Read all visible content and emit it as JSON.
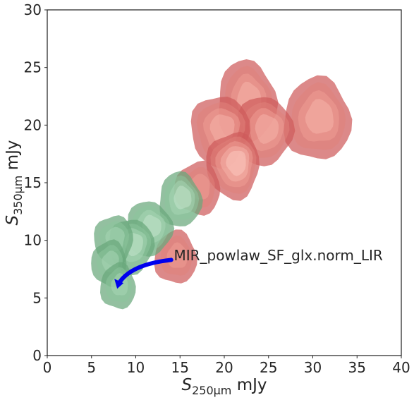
{
  "chart_data": {
    "type": "contour",
    "xlabel": {
      "symbol": "S",
      "subscript": "250µm",
      "unit": " mJy"
    },
    "ylabel": {
      "symbol": "S",
      "subscript": "350µm",
      "unit": " mJy"
    },
    "xlim": [
      0,
      40
    ],
    "ylim": [
      0,
      30
    ],
    "xticks": [
      0,
      5,
      10,
      15,
      20,
      25,
      30,
      35,
      40
    ],
    "yticks": [
      0,
      5,
      10,
      15,
      20,
      25,
      30
    ],
    "grid": false,
    "red_color": "#cd3a3a",
    "green_color": "#3c9a5f",
    "arrow_color": "#0000ee",
    "blobs": [
      {
        "group": "red",
        "x": 30.5,
        "y": 20.5,
        "rx": 3.8,
        "ry": 3.6,
        "levels": 4
      },
      {
        "group": "red",
        "x": 22.5,
        "y": 22.0,
        "rx": 3.3,
        "ry": 3.6,
        "levels": 4
      },
      {
        "group": "red",
        "x": 24.5,
        "y": 19.5,
        "rx": 3.2,
        "ry": 3.0,
        "levels": 4
      },
      {
        "group": "red",
        "x": 19.5,
        "y": 19.5,
        "rx": 3.3,
        "ry": 3.1,
        "levels": 4
      },
      {
        "group": "red",
        "x": 21.0,
        "y": 16.5,
        "rx": 3.0,
        "ry": 2.9,
        "levels": 5
      },
      {
        "group": "red",
        "x": 17.0,
        "y": 14.5,
        "rx": 2.6,
        "ry": 2.3,
        "levels": 3
      },
      {
        "group": "red",
        "x": 14.5,
        "y": 8.5,
        "rx": 2.4,
        "ry": 2.3,
        "levels": 3
      },
      {
        "group": "green",
        "x": 15.0,
        "y": 13.5,
        "rx": 2.4,
        "ry": 2.4,
        "levels": 4
      },
      {
        "group": "green",
        "x": 11.5,
        "y": 11.0,
        "rx": 2.6,
        "ry": 2.4,
        "levels": 4
      },
      {
        "group": "green",
        "x": 9.5,
        "y": 9.5,
        "rx": 2.5,
        "ry": 2.4,
        "levels": 4
      },
      {
        "group": "green",
        "x": 7.5,
        "y": 10.0,
        "rx": 2.2,
        "ry": 2.2,
        "levels": 3
      },
      {
        "group": "green",
        "x": 7.0,
        "y": 8.0,
        "rx": 2.0,
        "ry": 2.0,
        "levels": 3
      },
      {
        "group": "green",
        "x": 8.0,
        "y": 6.0,
        "rx": 2.0,
        "ry": 2.0,
        "levels": 3
      }
    ],
    "arrow": {
      "from": [
        14.0,
        8.3
      ],
      "to": [
        7.9,
        5.8
      ]
    },
    "annotations": [
      {
        "text": "MIR_powlaw_SF_glx.norm_LIR",
        "x": 14.3,
        "y": 8.7
      }
    ]
  }
}
